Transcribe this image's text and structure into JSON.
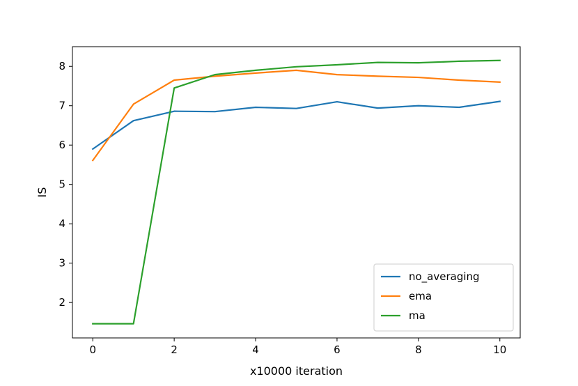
{
  "chart_data": {
    "type": "line",
    "title": "",
    "xlabel": "x10000 iteration",
    "ylabel": "IS",
    "xlim": [
      -0.5,
      10.5
    ],
    "ylim": [
      1.1,
      8.5
    ],
    "xticks": [
      0,
      2,
      4,
      6,
      8,
      10
    ],
    "yticks": [
      2,
      3,
      4,
      5,
      6,
      7,
      8
    ],
    "grid": false,
    "legend_position": "lower-right",
    "x": [
      0,
      1,
      2,
      3,
      4,
      5,
      6,
      7,
      8,
      9,
      10
    ],
    "series": [
      {
        "name": "no_averaging",
        "color": "#1f77b4",
        "values": [
          5.9,
          6.62,
          6.86,
          6.85,
          6.96,
          6.93,
          7.1,
          6.94,
          7.0,
          6.96,
          7.11
        ]
      },
      {
        "name": "ema",
        "color": "#ff7f0e",
        "values": [
          5.61,
          7.04,
          7.65,
          7.75,
          7.83,
          7.9,
          7.79,
          7.75,
          7.72,
          7.65,
          7.6
        ]
      },
      {
        "name": "ma",
        "color": "#2ca02c",
        "values": [
          1.46,
          1.46,
          7.45,
          7.79,
          7.9,
          7.99,
          8.04,
          8.1,
          8.09,
          8.13,
          8.15
        ]
      }
    ]
  }
}
